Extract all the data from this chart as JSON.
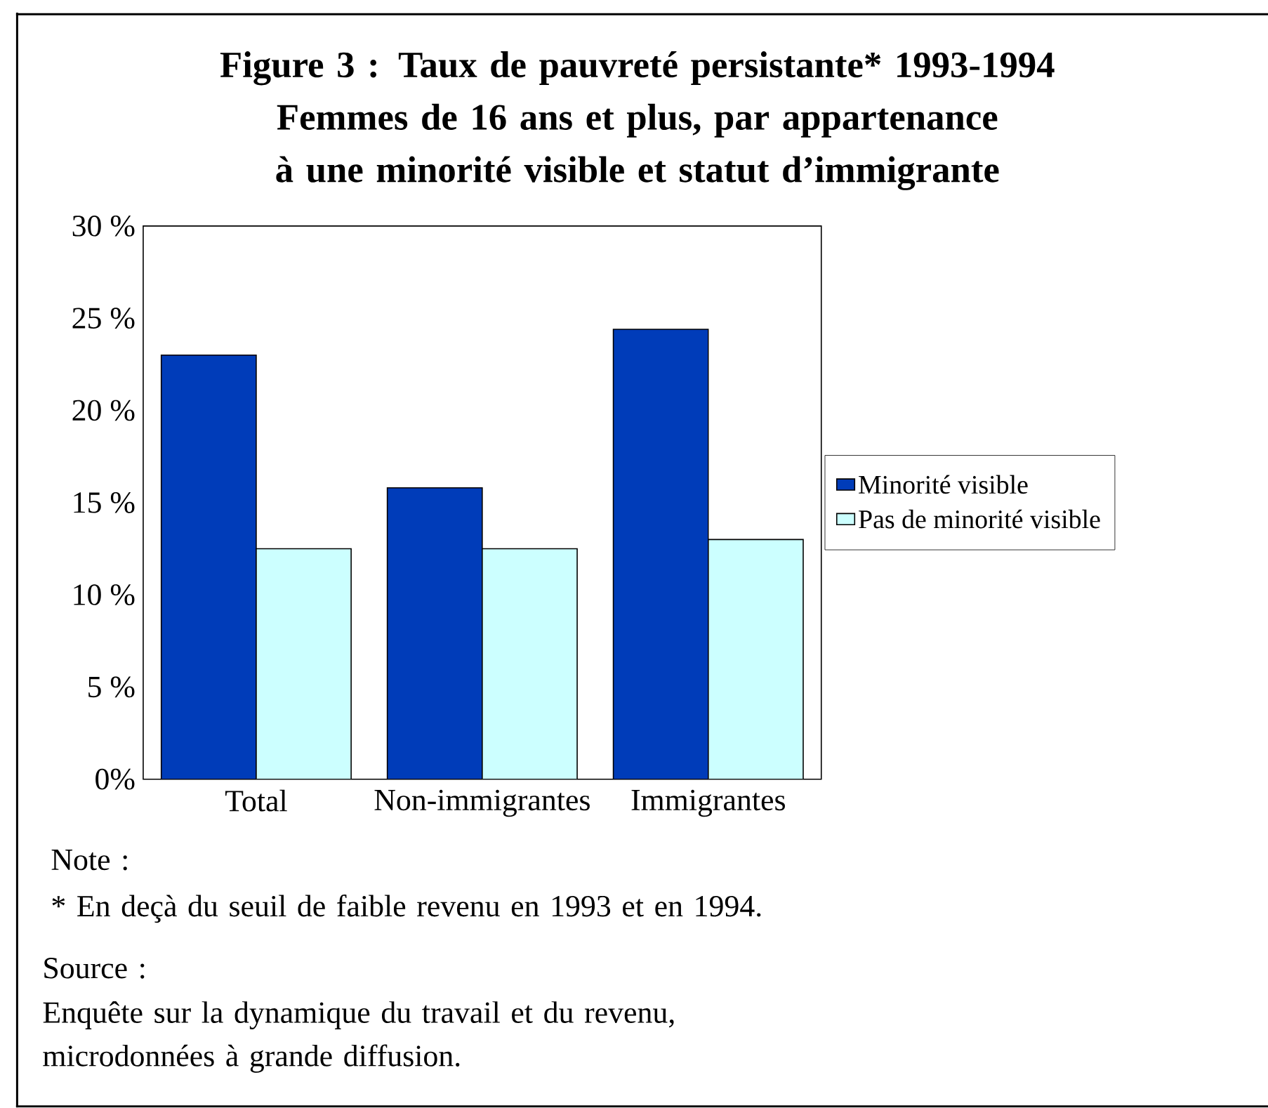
{
  "chart_data": {
    "type": "bar",
    "title": "Figure 3 : Taux de pauvreté persistante* 1993-1994",
    "subtitle": "Femmes de 16 ans et plus, par appartenance à une minorité visible et statut d’immigrante",
    "categories": [
      "Total",
      "Non-immigrantes",
      "Immigrantes"
    ],
    "series": [
      {
        "name": "Minorité visible",
        "color": "#003cb9",
        "values": [
          23.0,
          15.8,
          24.4
        ]
      },
      {
        "name": "Pas de minorité visible",
        "color": "#ccffff",
        "values": [
          12.5,
          12.5,
          13.0
        ]
      }
    ],
    "ylim": [
      0,
      30
    ],
    "yticks": [
      {
        "value": 0,
        "label": "0%"
      },
      {
        "value": 5,
        "label": "5 %"
      },
      {
        "value": 10,
        "label": "10 %"
      },
      {
        "value": 15,
        "label": "15 %"
      },
      {
        "value": 20,
        "label": "20 %"
      },
      {
        "value": 25,
        "label": "25 %"
      },
      {
        "value": 30,
        "label": "30 %"
      }
    ],
    "legend": "right",
    "grid": false,
    "annotations": [
      "Note :",
      "* En deçà du seuil de faible revenu en 1993 et en 1994.",
      "Source :",
      "Enquête sur la dynamique du travail et du revenu, microdonnées à grande diffusion."
    ]
  }
}
